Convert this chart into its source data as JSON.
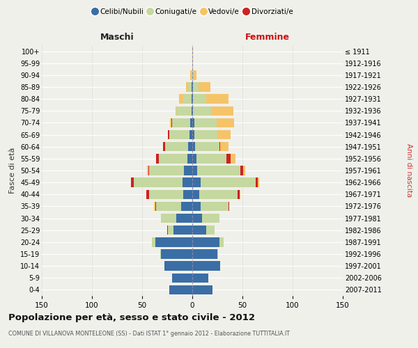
{
  "age_groups": [
    "0-4",
    "5-9",
    "10-14",
    "15-19",
    "20-24",
    "25-29",
    "30-34",
    "35-39",
    "40-44",
    "45-49",
    "50-54",
    "55-59",
    "60-64",
    "65-69",
    "70-74",
    "75-79",
    "80-84",
    "85-89",
    "90-94",
    "95-99",
    "100+"
  ],
  "birth_years": [
    "2007-2011",
    "2002-2006",
    "1997-2001",
    "1992-1996",
    "1987-1991",
    "1982-1986",
    "1977-1981",
    "1972-1976",
    "1967-1971",
    "1962-1966",
    "1957-1961",
    "1952-1956",
    "1947-1951",
    "1942-1946",
    "1937-1941",
    "1932-1936",
    "1927-1931",
    "1922-1926",
    "1917-1921",
    "1912-1916",
    "≤ 1911"
  ],
  "male": {
    "celibi": [
      23,
      20,
      28,
      31,
      37,
      19,
      16,
      11,
      9,
      10,
      8,
      5,
      4,
      3,
      2,
      1,
      1,
      1,
      0,
      0,
      0
    ],
    "coniugati": [
      0,
      0,
      0,
      1,
      3,
      5,
      15,
      25,
      34,
      48,
      35,
      28,
      23,
      20,
      18,
      15,
      8,
      3,
      1,
      0,
      0
    ],
    "vedovi": [
      0,
      0,
      0,
      0,
      0,
      0,
      0,
      1,
      0,
      0,
      1,
      0,
      0,
      0,
      1,
      1,
      4,
      2,
      1,
      0,
      0
    ],
    "divorziati": [
      0,
      0,
      0,
      0,
      0,
      1,
      0,
      1,
      3,
      3,
      1,
      3,
      2,
      1,
      1,
      0,
      0,
      0,
      0,
      0,
      0
    ]
  },
  "female": {
    "nubili": [
      20,
      16,
      28,
      25,
      27,
      14,
      10,
      8,
      7,
      8,
      5,
      4,
      3,
      2,
      2,
      1,
      1,
      1,
      0,
      0,
      0
    ],
    "coniugate": [
      0,
      0,
      0,
      1,
      4,
      8,
      17,
      28,
      38,
      55,
      43,
      30,
      24,
      23,
      22,
      18,
      13,
      5,
      1,
      0,
      0
    ],
    "vedove": [
      0,
      0,
      0,
      0,
      0,
      0,
      0,
      0,
      1,
      2,
      2,
      5,
      8,
      13,
      18,
      22,
      22,
      12,
      3,
      1,
      1
    ],
    "divorziate": [
      0,
      0,
      0,
      0,
      0,
      0,
      0,
      1,
      2,
      2,
      3,
      4,
      1,
      0,
      0,
      0,
      0,
      0,
      0,
      0,
      0
    ]
  },
  "colors": {
    "celibi": "#3A6EA5",
    "coniugati": "#C5D8A0",
    "vedovi": "#F5C469",
    "divorziati": "#CC2222"
  },
  "legend_labels": [
    "Celibi/Nubili",
    "Coniugati/e",
    "Vedovi/e",
    "Divorziati/e"
  ],
  "title": "Popolazione per età, sesso e stato civile - 2012",
  "subtitle": "COMUNE DI VILLANOVA MONTELEONE (SS) - Dati ISTAT 1° gennaio 2012 - Elaborazione TUTTITALIA.IT",
  "xlabel_left": "Maschi",
  "xlabel_right": "Femmine",
  "ylabel_left": "Fasce di età",
  "ylabel_right": "Anni di nascita",
  "xlim": 150,
  "background_color": "#f0f0eb"
}
